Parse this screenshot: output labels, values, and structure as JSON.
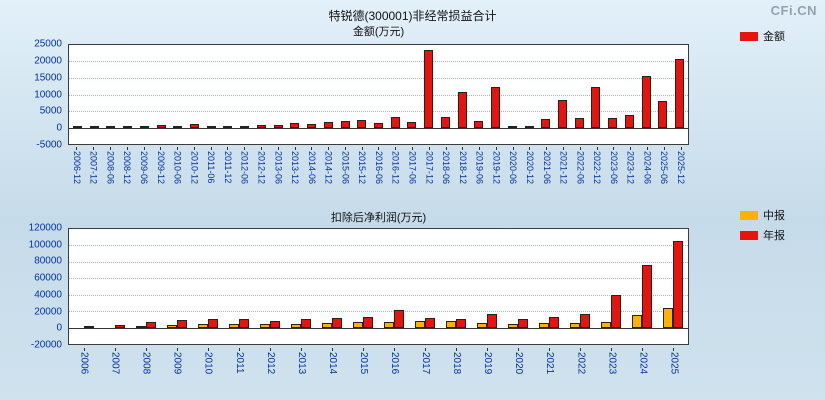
{
  "brand": {
    "text": "CFi.CN"
  },
  "chart_data": [
    {
      "type": "bar",
      "title": "特锐德(300001)非经常损益合计",
      "subtitle": "金额(万元)",
      "legend": [
        {
          "label": "金额",
          "color": "#e8130c"
        }
      ],
      "legend_position": "top-right",
      "grid": true,
      "ylim": [
        -5000,
        25000
      ],
      "yticks": [
        25000,
        20000,
        15000,
        10000,
        5000,
        0,
        -5000
      ],
      "categories": [
        "2006-12",
        "2007-12",
        "2008-06",
        "2008-12",
        "2009-06",
        "2009-12",
        "2010-06",
        "2010-12",
        "2011-06",
        "2011-12",
        "2012-06",
        "2012-12",
        "2013-06",
        "2013-12",
        "2014-06",
        "2014-12",
        "2015-06",
        "2015-12",
        "2016-06",
        "2016-12",
        "2017-06",
        "2017-12",
        "2018-06",
        "2018-12",
        "2019-06",
        "2019-12",
        "2020-06",
        "2020-12",
        "2021-06",
        "2021-12",
        "2022-06",
        "2022-12",
        "2023-06",
        "2023-12",
        "2024-06",
        "2025-06",
        "2025-12"
      ],
      "series": [
        {
          "name": "金额",
          "key": "amount",
          "color": "#e8130c",
          "values": [
            250,
            350,
            120,
            380,
            180,
            650,
            480,
            950,
            300,
            600,
            500,
            850,
            700,
            1450,
            1050,
            1750,
            1950,
            2350,
            1450,
            3300,
            1650,
            23400,
            3300,
            10700,
            2100,
            12200,
            350,
            500,
            2700,
            8300,
            3000,
            12400,
            3000,
            3800,
            15700,
            8000,
            20700
          ]
        }
      ]
    },
    {
      "type": "bar",
      "title": "扣除后净利润(万元)",
      "legend": [
        {
          "label": "中报",
          "color": "#ffb000"
        },
        {
          "label": "年报",
          "color": "#e8130c"
        }
      ],
      "legend_position": "right",
      "grid": true,
      "ylim": [
        -20000,
        120000
      ],
      "yticks": [
        120000,
        100000,
        80000,
        60000,
        40000,
        20000,
        0,
        -20000
      ],
      "categories": [
        "2006",
        "2007",
        "2008",
        "2009",
        "2010",
        "2011",
        "2012",
        "2013",
        "2014",
        "2015",
        "2016",
        "2017",
        "2018",
        "2019",
        "2020",
        "2021",
        "2022",
        "2023",
        "2024",
        "2025"
      ],
      "series": [
        {
          "name": "中报",
          "key": "interim",
          "color": "#ffb000",
          "values": [
            null,
            null,
            2000,
            3500,
            4200,
            4800,
            3800,
            4500,
            5500,
            6500,
            7000,
            8500,
            7500,
            6000,
            4000,
            5500,
            6000,
            6500,
            15000,
            24000
          ]
        },
        {
          "name": "年报",
          "key": "annual",
          "color": "#e8130c",
          "values": [
            2500,
            3000,
            6500,
            9000,
            10500,
            11000,
            8500,
            10500,
            11500,
            13000,
            21000,
            12000,
            10000,
            17000,
            10500,
            12500,
            16000,
            40000,
            76000,
            105000
          ]
        }
      ]
    }
  ]
}
